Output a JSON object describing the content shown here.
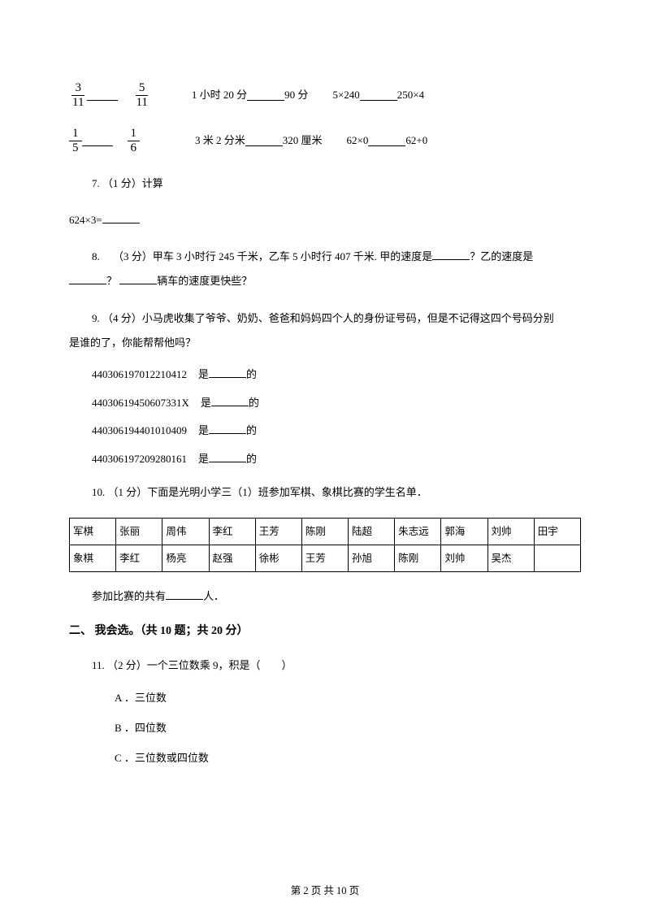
{
  "row1": {
    "f1n": "3",
    "f1d": "11",
    "f2n": "5",
    "f2d": "11",
    "t1": "1 小时 20 分",
    "t2": "90 分",
    "e1": "5×240",
    "e2": "250×4"
  },
  "row2": {
    "f1n": "1",
    "f1d": "5",
    "f2n": "1",
    "f2d": "6",
    "t1": "3 米 2 分米",
    "t2": "320 厘米",
    "e1": "62×0",
    "e2": "62+0"
  },
  "q7": {
    "label": "7. （1 分）计算",
    "expr": "624×3="
  },
  "q8": {
    "text_a": "8.  （3 分）甲车 3 小时行 245 千米，乙车 5 小时行 407 千米. 甲的速度是",
    "text_b": "？乙的速度是",
    "text_c": "？",
    "text_d": "辆车的速度更快些？"
  },
  "q9": {
    "lead_a": "9. （4 分）小马虎收集了爷爷、奶奶、爸爸和妈妈四个人的身份证号码，但是不记得这四个号码分别",
    "lead_b": "是谁的了，你能帮帮他吗？",
    "rows": [
      {
        "id": "440306197012210412",
        "pre": "是",
        "post": "的"
      },
      {
        "id": "44030619450607331X",
        "pre": "是",
        "post": "的"
      },
      {
        "id": "440306194401010409",
        "pre": "是",
        "post": "的"
      },
      {
        "id": "440306197209280161",
        "pre": "是",
        "post": "的"
      }
    ]
  },
  "q10": {
    "lead": "10. （1 分）下面是光明小学三（1）班参加军棋、象棋比赛的学生名单．",
    "table": [
      [
        "军棋",
        "张丽",
        "周伟",
        "李红",
        "王芳",
        "陈刚",
        "陆超",
        "朱志远",
        "郭海",
        "刘帅",
        "田宇"
      ],
      [
        "象棋",
        "李红",
        "杨亮",
        "赵强",
        "徐彬",
        "王芳",
        "孙旭",
        "陈刚",
        "刘帅",
        "吴杰",
        ""
      ]
    ],
    "tail_a": "参加比赛的共有",
    "tail_b": "人．"
  },
  "section2": "二、 我会选。（共 10 题；共 20 分）",
  "q11": {
    "stem": "11. （2 分）一个三位数乘 9，积是（  ）",
    "a": "A ．三位数",
    "b": "B ．四位数",
    "c": "C ．三位数或四位数"
  },
  "footer": "第 2 页 共 10 页"
}
